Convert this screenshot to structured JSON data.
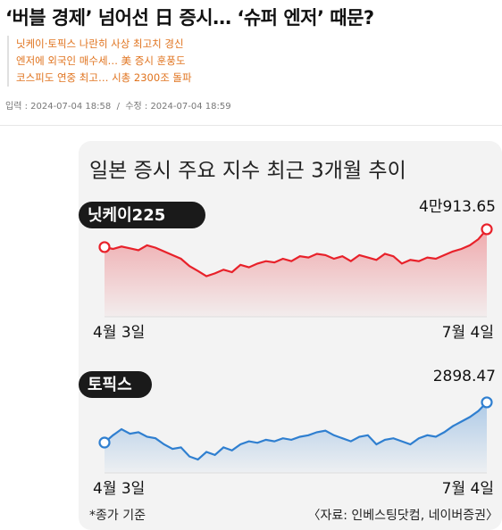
{
  "header": {
    "title": "‘버블 경제’ 넘어선 日 증시… ‘슈퍼 엔저’ 때문?",
    "summary": [
      "닛케이·토픽스 나란히 사상 최고치 경신",
      "엔저에 외국인 매수세… 美 증시 훈풍도",
      "코스피도 연중 최고… 시총 2300조 돌파"
    ],
    "meta": "입력 : 2024-07-04 18:58  /  수정 : 2024-07-04 18:59"
  },
  "infographic": {
    "title": "일본 증시 주요 지수 최근 3개월 추이",
    "note": "*종가 기준",
    "source": "〈자료: 인베스팅닷컴, 네이버증권〉"
  },
  "chart_data": [
    {
      "type": "line",
      "categories": [
        "4월 3일",
        null,
        null,
        null,
        null,
        null,
        null,
        null,
        null,
        null,
        null,
        null,
        null,
        null,
        null,
        null,
        null,
        null,
        null,
        null,
        null,
        null,
        null,
        null,
        null,
        null,
        null,
        null,
        null,
        null,
        null,
        null,
        null,
        null,
        null,
        null,
        null,
        null,
        null,
        null,
        null,
        null,
        null,
        null,
        null,
        "7월 4일"
      ],
      "ylim": [
        33750,
        42150
      ],
      "series": [
        {
          "name": "닛케이225",
          "color": "#e8212a",
          "values": [
            39451,
            39300,
            39500,
            39350,
            39200,
            39600,
            39400,
            39100,
            38800,
            38500,
            37900,
            37500,
            37068,
            37300,
            37600,
            37400,
            38000,
            37800,
            38100,
            38300,
            38200,
            38500,
            38300,
            38700,
            38600,
            38900,
            38800,
            38500,
            38700,
            38300,
            38800,
            38600,
            38400,
            38900,
            38700,
            38100,
            38400,
            38300,
            38600,
            38500,
            38800,
            39100,
            39300,
            39600,
            40100,
            40913.65
          ],
          "value_labels": [
            null,
            null,
            null,
            null,
            null,
            null,
            null,
            null,
            null,
            null,
            null,
            null,
            null,
            null,
            null,
            null,
            null,
            null,
            null,
            null,
            null,
            null,
            null,
            null,
            null,
            null,
            null,
            null,
            null,
            null,
            null,
            null,
            null,
            null,
            null,
            null,
            null,
            null,
            null,
            null,
            null,
            null,
            null,
            null,
            null,
            "4만913.65"
          ]
        }
      ]
    },
    {
      "type": "line",
      "categories": [
        "4월 3일",
        null,
        null,
        null,
        null,
        null,
        null,
        null,
        null,
        null,
        null,
        null,
        null,
        null,
        null,
        null,
        null,
        null,
        null,
        null,
        null,
        null,
        null,
        null,
        null,
        null,
        null,
        null,
        null,
        null,
        null,
        null,
        null,
        null,
        null,
        null,
        null,
        null,
        null,
        null,
        null,
        null,
        null,
        null,
        null,
        "7월 4일"
      ],
      "ylim": [
        2666,
        2960
      ],
      "series": [
        {
          "name": "토픽스",
          "color": "#2f7fd0",
          "values": [
            2766,
            2790,
            2810,
            2795,
            2800,
            2785,
            2780,
            2760,
            2745,
            2750,
            2720,
            2710,
            2735,
            2725,
            2750,
            2740,
            2760,
            2770,
            2765,
            2775,
            2770,
            2780,
            2775,
            2785,
            2790,
            2800,
            2805,
            2790,
            2780,
            2770,
            2785,
            2790,
            2760,
            2775,
            2780,
            2770,
            2760,
            2780,
            2790,
            2785,
            2800,
            2820,
            2835,
            2850,
            2870,
            2898.47
          ]
        }
      ]
    }
  ]
}
